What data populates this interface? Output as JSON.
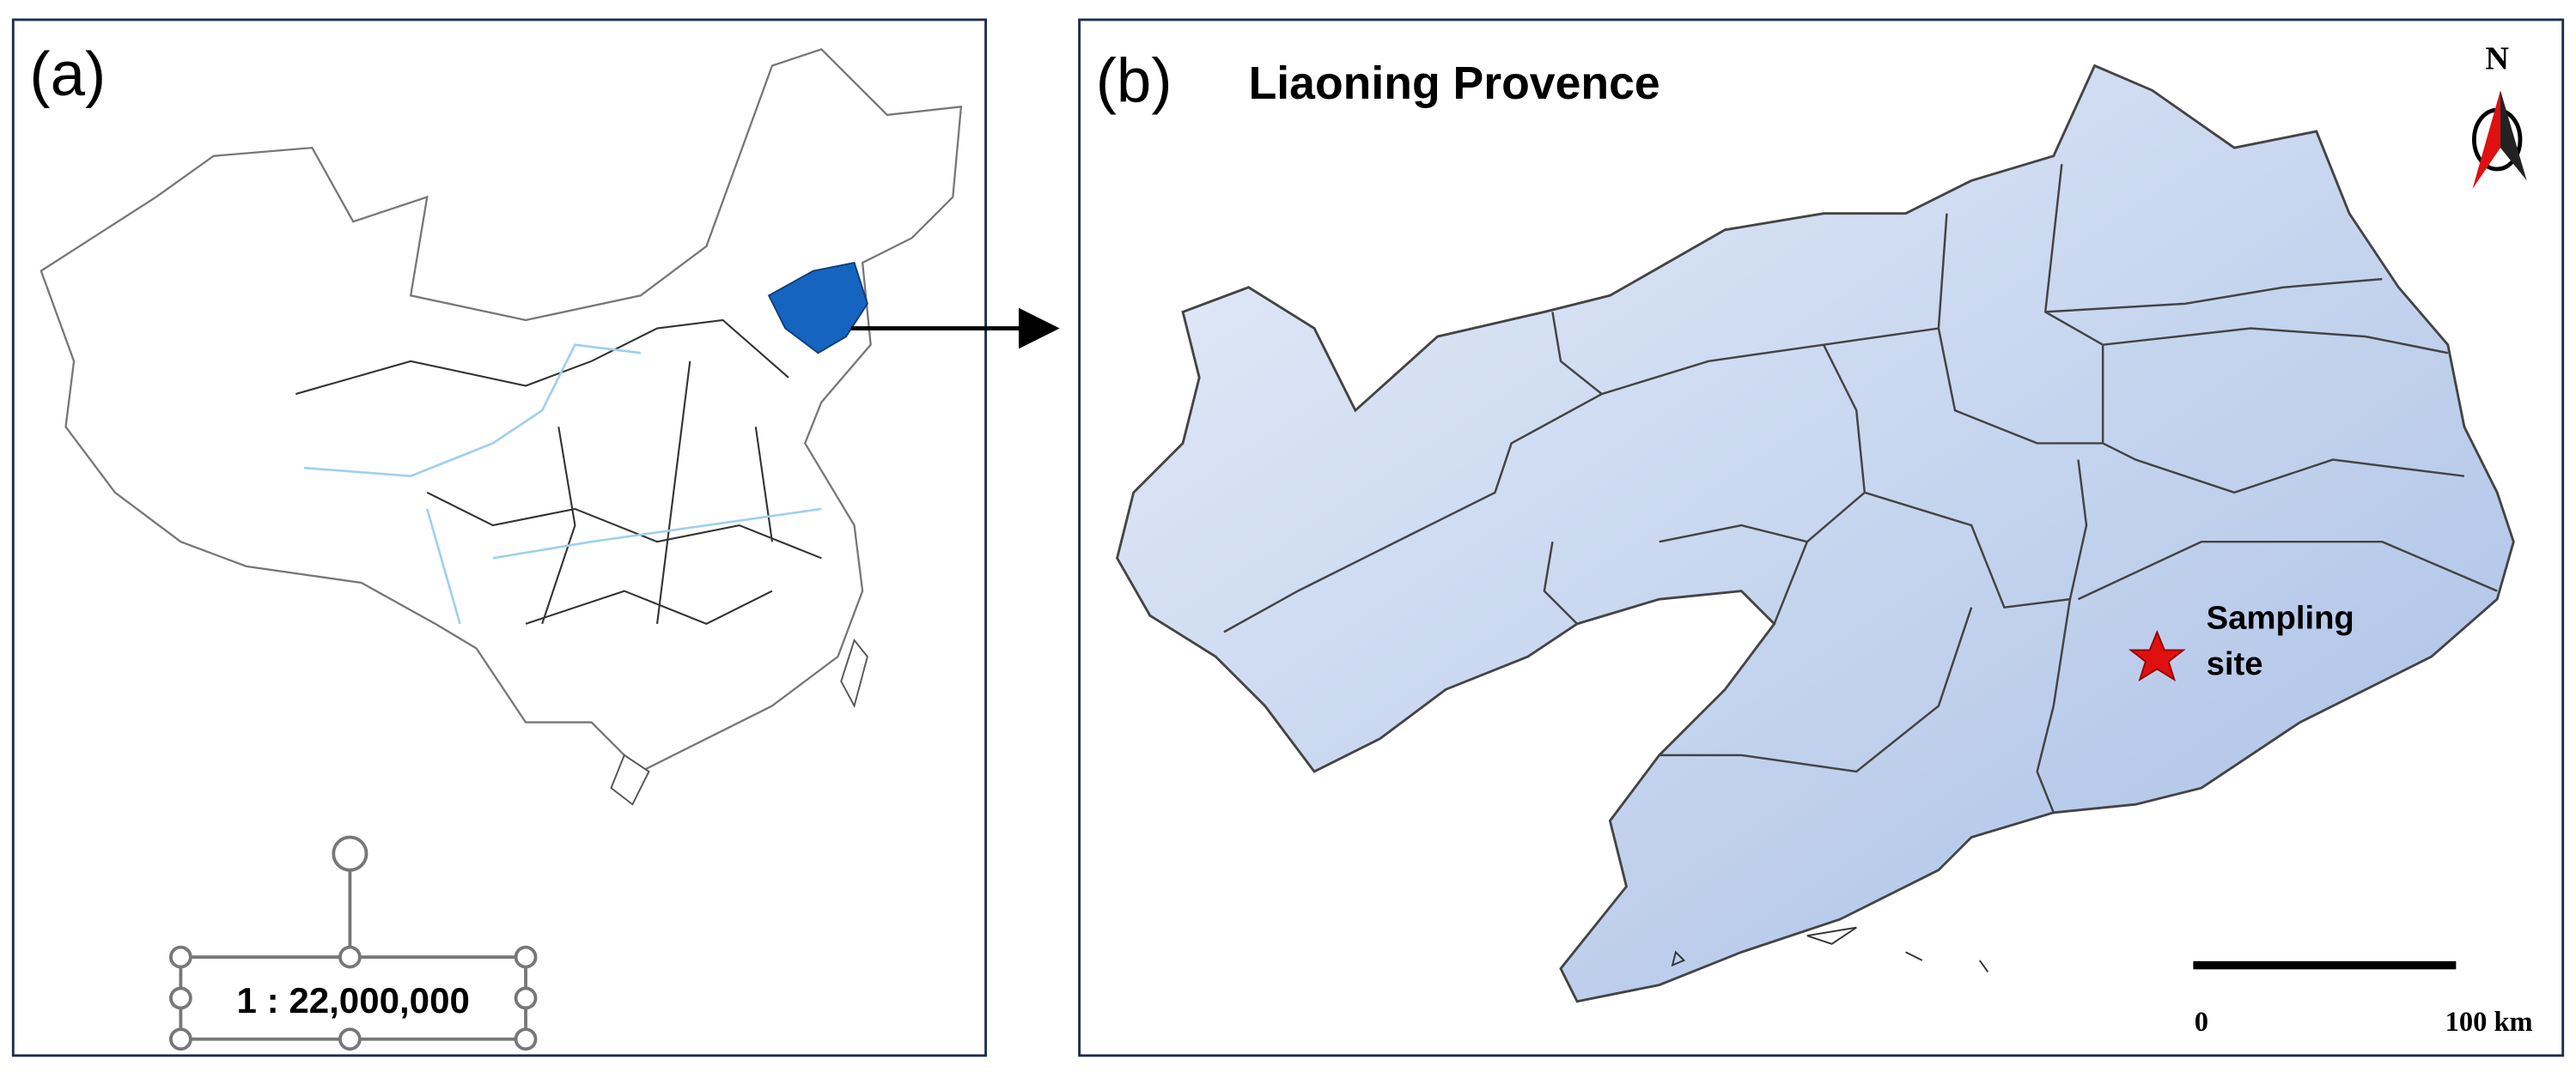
{
  "panel_a": {
    "label": "(a)",
    "scale": "1 : 22,000,000"
  },
  "panel_b": {
    "label": "(b)",
    "title": "Liaoning Provence",
    "north": "N",
    "sampling_site": {
      "lines": [
        "Sampling",
        "site"
      ]
    },
    "scale_bar": {
      "start": "0",
      "end": "100 km"
    }
  }
}
